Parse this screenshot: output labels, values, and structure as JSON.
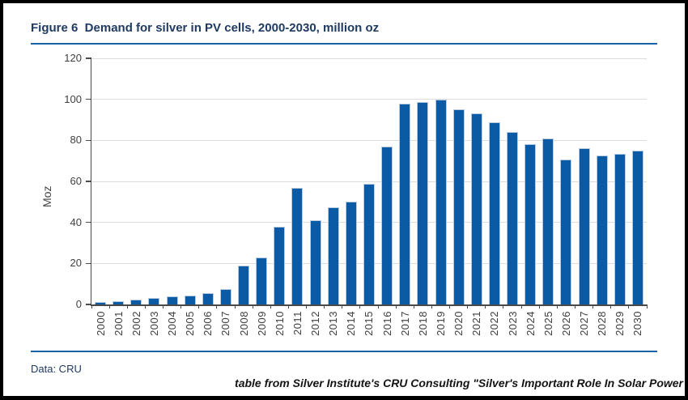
{
  "figure": {
    "title": "Figure 6  Demand for silver in PV cells, 2000-2030, million oz",
    "source_note": "Data: CRU",
    "attribution": "table from Silver Institute's CRU Consulting \"Silver's Important Role In Solar Power"
  },
  "colors": {
    "bar": "#0a5aa6",
    "bar_edge": "#b8cbdf",
    "title_text": "#1f3a63",
    "blue_rule": "#1b5fa8",
    "gridline": "#dcdcdc",
    "axis_line": "#4a4a4a",
    "tick_label": "#3f3f3f",
    "frame_border": "#000000"
  },
  "chart_data": {
    "type": "bar",
    "title": "Demand for silver in PV cells, 2000-2030, million oz",
    "xlabel": "",
    "ylabel": "Moz",
    "ylim": [
      0,
      120
    ],
    "ytick_interval": 20,
    "grid": true,
    "legend": false,
    "categories": [
      "2000",
      "2001",
      "2002",
      "2003",
      "2004",
      "2005",
      "2006",
      "2007",
      "2008",
      "2009",
      "2010",
      "2011",
      "2012",
      "2013",
      "2014",
      "2015",
      "2016",
      "2017",
      "2018",
      "2019",
      "2020",
      "2021",
      "2022",
      "2023",
      "2024",
      "2025",
      "2026",
      "2027",
      "2028",
      "2029",
      "2030"
    ],
    "values": [
      1,
      1.5,
      2.5,
      3,
      4,
      4.5,
      5.5,
      7.5,
      19,
      23,
      38,
      57,
      41,
      47.5,
      50,
      59,
      77,
      98,
      98.5,
      100,
      95,
      93,
      89,
      84,
      78,
      81,
      70.5,
      76,
      72.5,
      73.5,
      75
    ]
  }
}
